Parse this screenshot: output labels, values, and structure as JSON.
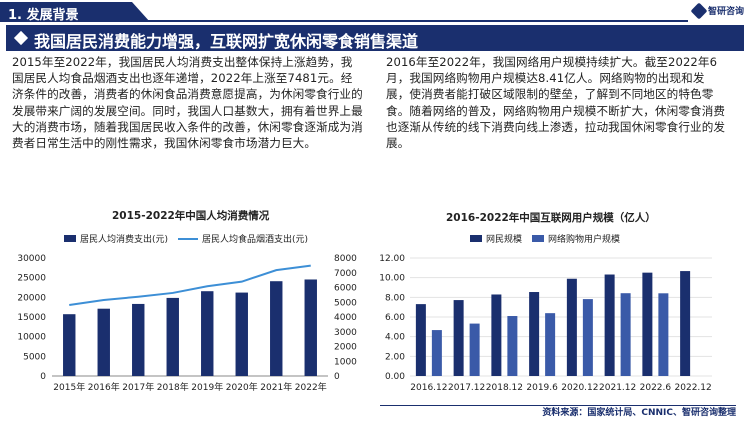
{
  "header": {
    "section": "1. 发展背景",
    "logo_text": "智研咨询"
  },
  "banner": {
    "title": "我国居民消费能力增强，互联网扩宽休闲零食销售渠道"
  },
  "paragraphs": {
    "left": "2015年至2022年，我国居民人均消费支出整体保持上涨趋势，我国居民人均食品烟酒支出也逐年递增，2022年上涨至7481元。经济条件的改善，消费者的休闲食品消费意愿提高，为休闲零食行业的发展带来广阔的发展空间。同时，我国人口基数大，拥有着世界上最大的消费市场，随着我国居民收入条件的改善，休闲零食逐渐成为消费者日常生活中的刚性需求，我国休闲零食市场潜力巨大。",
    "right": "2016年至2022年，我国网络用户规模持续扩大。截至2022年6月，我国网络购物用户规模达8.41亿人。网络购物的出现和发展，使消费者能打破区域限制的壁垒，了解到不同地区的特色零食。随着网络的普及，网络购物用户规模不断扩大，休闲零食消费也逐渐从传统的线下消费向线上渗透，拉动我国休闲零食行业的发展。"
  },
  "chart_data": [
    {
      "type": "bar",
      "title": "2015-2022年中国人均消费情况",
      "categories": [
        "2015年",
        "2016年",
        "2017年",
        "2018年",
        "2019年",
        "2020年",
        "2021年",
        "2022年"
      ],
      "series": [
        {
          "name": "居民人均消费支出(元)",
          "kind": "bar",
          "axis": "left",
          "color": "#1a2f6e",
          "values": [
            15712,
            17111,
            18322,
            19853,
            21559,
            21210,
            24100,
            24538
          ]
        },
        {
          "name": "居民人均食品烟酒支出(元)",
          "kind": "line",
          "axis": "right",
          "color": "#3d8fd6",
          "values": [
            4814,
            5151,
            5374,
            5631,
            6084,
            6397,
            7178,
            7481
          ]
        }
      ],
      "yleft": {
        "min": 0,
        "max": 30000,
        "ticks": [
          "0",
          "5000",
          "10000",
          "15000",
          "20000",
          "25000",
          "30000"
        ]
      },
      "yright": {
        "min": 0,
        "max": 8000,
        "ticks": [
          "0",
          "1000",
          "2000",
          "3000",
          "4000",
          "5000",
          "6000",
          "7000",
          "8000"
        ]
      },
      "legend": "top"
    },
    {
      "type": "bar",
      "title": "2016-2022年中国互联网用户规模（亿人）",
      "categories": [
        "2016.12",
        "2017.12",
        "2018.12",
        "2019.6",
        "2020.12",
        "2021.12",
        "2022.6",
        "2022.12"
      ],
      "series": [
        {
          "name": "网民规模",
          "color": "#1a2f6e",
          "values": [
            7.31,
            7.72,
            8.29,
            8.54,
            9.89,
            10.32,
            10.51,
            10.67
          ]
        },
        {
          "name": "网络购物用户规模",
          "color": "#3a5aa8",
          "values": [
            4.67,
            5.33,
            6.1,
            6.39,
            7.82,
            8.42,
            8.41,
            null
          ]
        }
      ],
      "y": {
        "min": 0,
        "max": 12,
        "ticks": [
          "0.00",
          "2.00",
          "4.00",
          "6.00",
          "8.00",
          "10.00",
          "12.00"
        ]
      },
      "legend": "top"
    }
  ],
  "source": "资料来源：国家统计局、CNNIC、智研咨询整理"
}
